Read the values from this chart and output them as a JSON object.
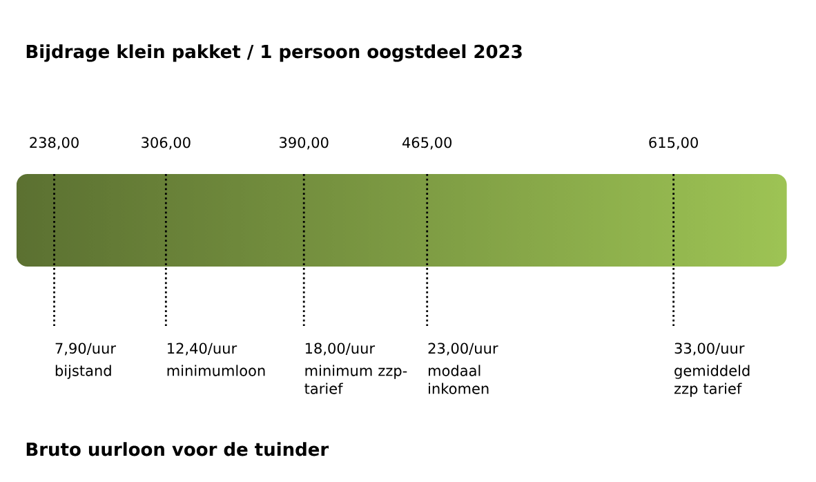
{
  "chart_data": {
    "type": "other",
    "title": "Bijdrage klein pakket / 1 persoon oogstdeel 2023",
    "xlabel": "Bruto uurloon voor de tuinder",
    "values": [
      238,
      306,
      390,
      465,
      615
    ],
    "value_labels": [
      "238,00",
      "306,00",
      "390,00",
      "465,00",
      "615,00"
    ],
    "categories": [
      "7,90/uur",
      "12,40/uur",
      "18,00/uur",
      "23,00/uur",
      "33,00/uur"
    ],
    "annotations": [
      "bijstand",
      "minimumloon",
      "minimum zzp-tarief",
      "modaal inkomen",
      "gemiddeld zzp tarief"
    ],
    "colors": [
      "#5b7031",
      "#6a8238",
      "#7d9a42",
      "#8cad4a",
      "#9dc354"
    ]
  }
}
